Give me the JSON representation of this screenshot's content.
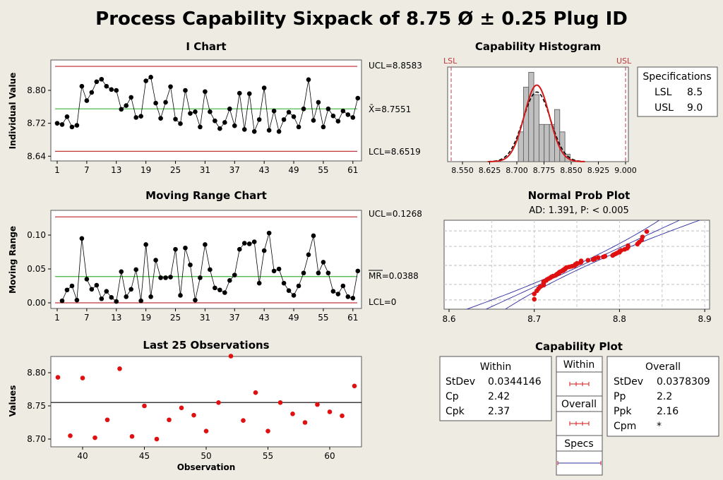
{
  "title": "Process Capability Sixpack of 8.75 Ø ± 0.25 Plug ID",
  "colors": {
    "control_limit": "#c0383c",
    "center_line": "#3cb43c",
    "point": "#000000",
    "red_point": "#e01010",
    "fit_line": "#2c2ca0",
    "bar": "#c0c0c0"
  },
  "chart_data": [
    {
      "type": "line",
      "title": "I Chart",
      "ylabel": "Individual Value",
      "x_ticks": [
        1,
        7,
        13,
        19,
        25,
        31,
        37,
        43,
        49,
        55,
        61
      ],
      "y_ticks": [
        "8.64",
        "8.72",
        "8.80"
      ],
      "values": [
        8.72,
        8.717,
        8.736,
        8.711,
        8.715,
        8.81,
        8.775,
        8.795,
        8.821,
        8.827,
        8.81,
        8.802,
        8.8,
        8.754,
        8.763,
        8.783,
        8.734,
        8.737,
        8.823,
        8.832,
        8.769,
        8.732,
        8.771,
        8.809,
        8.73,
        8.719,
        8.8,
        8.744,
        8.748,
        8.711,
        8.797,
        8.748,
        8.726,
        8.707,
        8.722,
        8.755,
        8.714,
        8.793,
        8.705,
        8.792,
        8.7,
        8.729,
        8.806,
        8.703,
        8.75,
        8.7,
        8.729,
        8.747,
        8.736,
        8.711,
        8.755,
        8.826,
        8.727,
        8.771,
        8.711,
        8.755,
        8.738,
        8.725,
        8.75,
        8.741,
        8.734,
        8.781
      ],
      "ucl": 8.8583,
      "center": 8.7551,
      "lcl": 8.6519,
      "ucl_label": "UCL=8.8583",
      "center_label": "X̄=8.7551",
      "lcl_label": "LCL=8.6519",
      "ylim": [
        8.635,
        8.87
      ]
    },
    {
      "type": "line",
      "title": "Moving Range Chart",
      "ylabel": "Moving Range",
      "x_ticks": [
        1,
        7,
        13,
        19,
        25,
        31,
        37,
        43,
        49,
        55,
        61
      ],
      "y_ticks": [
        "0.00",
        "0.05",
        "0.10"
      ],
      "start_index": 2,
      "values": [
        0.003,
        0.019,
        0.025,
        0.004,
        0.095,
        0.035,
        0.02,
        0.026,
        0.006,
        0.017,
        0.008,
        0.002,
        0.046,
        0.009,
        0.02,
        0.049,
        0.003,
        0.086,
        0.009,
        0.063,
        0.037,
        0.037,
        0.038,
        0.079,
        0.011,
        0.081,
        0.056,
        0.004,
        0.037,
        0.086,
        0.049,
        0.022,
        0.019,
        0.015,
        0.033,
        0.041,
        0.079,
        0.088,
        0.087,
        0.09,
        0.029,
        0.077,
        0.103,
        0.047,
        0.05,
        0.029,
        0.018,
        0.011,
        0.025,
        0.044,
        0.071,
        0.099,
        0.044,
        0.06,
        0.044,
        0.017,
        0.013,
        0.025,
        0.009,
        0.007,
        0.047
      ],
      "ucl": 0.1268,
      "center": 0.0388,
      "lcl": 0,
      "ucl_label": "UCL=0.1268",
      "center_label": "MR=0.0388",
      "lcl_label": "LCL=0"
    },
    {
      "type": "scatter",
      "title": "Last 25 Observations",
      "xlabel": "Observation",
      "ylabel": "Values",
      "x_ticks": [
        40,
        45,
        50,
        55,
        60
      ],
      "y_ticks": [
        "8.70",
        "8.75",
        "8.80"
      ],
      "x": [
        38,
        39,
        40,
        41,
        42,
        43,
        44,
        45,
        46,
        47,
        48,
        49,
        50,
        51,
        52,
        53,
        54,
        55,
        56,
        57,
        58,
        59,
        60,
        61,
        62
      ],
      "values": [
        8.793,
        8.705,
        8.792,
        8.702,
        8.729,
        8.806,
        8.704,
        8.75,
        8.7,
        8.729,
        8.747,
        8.736,
        8.712,
        8.755,
        8.825,
        8.728,
        8.77,
        8.712,
        8.755,
        8.738,
        8.725,
        8.752,
        8.741,
        8.735,
        8.78
      ],
      "reference": 8.7551
    },
    {
      "type": "bar",
      "title": "Capability Histogram",
      "x_ticks": [
        "8.550",
        "8.625",
        "8.700",
        "8.775",
        "8.850",
        "8.925",
        "9.000"
      ],
      "bin_start": 8.704,
      "bin_width": 0.0143,
      "counts": [
        4,
        10,
        12,
        9,
        5,
        5,
        5,
        7,
        4,
        1
      ],
      "mean": 8.7551,
      "stdev_within": 0.0344146,
      "stdev_overall": 0.0378309,
      "lsl_label": "LSL",
      "usl_label": "USL",
      "lsl": 8.5,
      "usl": 9.0,
      "legend": {
        "title": "Specifications",
        "rows": [
          {
            "k": "LSL",
            "v": "8.5"
          },
          {
            "k": "USL",
            "v": "9.0"
          }
        ]
      }
    },
    {
      "type": "scatter",
      "title": "Normal Prob Plot",
      "subtitle": "AD: 1.391, P: < 0.005",
      "x_ticks": [
        "8.6",
        "8.7",
        "8.8",
        "8.9"
      ],
      "xlim": [
        8.6,
        8.9
      ],
      "grid": true
    },
    {
      "type": "table",
      "title": "Capability Plot",
      "within": {
        "title": "Within",
        "rows": [
          {
            "k": "StDev",
            "v": "0.0344146"
          },
          {
            "k": "Cp",
            "v": "2.42"
          },
          {
            "k": "Cpk",
            "v": "2.37"
          }
        ]
      },
      "overall": {
        "title": "Overall",
        "rows": [
          {
            "k": "StDev",
            "v": "0.0378309"
          },
          {
            "k": "Pp",
            "v": "2.2"
          },
          {
            "k": "Ppk",
            "v": "2.16"
          },
          {
            "k": "Cpm",
            "v": "*"
          }
        ]
      },
      "legend": [
        "Within",
        "Overall",
        "Specs"
      ]
    }
  ]
}
